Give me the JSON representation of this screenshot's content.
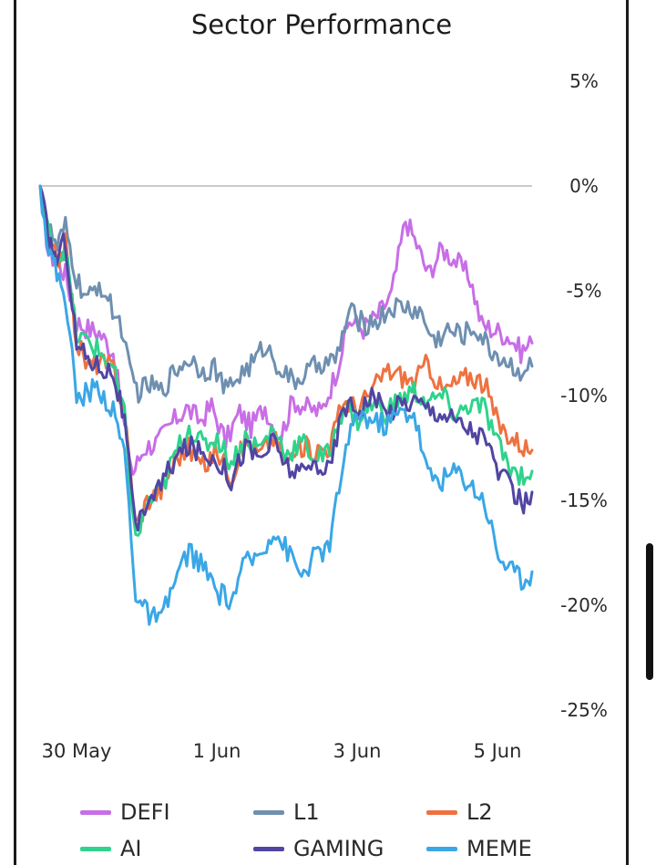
{
  "chart_data": {
    "type": "line",
    "title": "Sector Performance",
    "xlabel": "",
    "ylabel": "",
    "x_ticks": [
      "30 May",
      "1 Jun",
      "3 Jun",
      "5 Jun"
    ],
    "x_range": [
      "30 May",
      "5 Jun"
    ],
    "y_ticks": [
      "5%",
      "0%",
      "-5%",
      "-10%",
      "-15%",
      "-20%",
      "-25%"
    ],
    "y_tick_values": [
      5,
      0,
      -5,
      -10,
      -15,
      -20,
      -25
    ],
    "ylim": [
      -25,
      5
    ],
    "y_axis_side": "right",
    "reference_line": 0,
    "grid": false,
    "legend_position": "bottom",
    "series": [
      {
        "name": "DEFI",
        "color": "#c86ee6",
        "keypoints": [
          [
            0,
            0
          ],
          [
            0.6,
            -3.2
          ],
          [
            1.2,
            -3.6
          ],
          [
            1.8,
            -4.2
          ],
          [
            2.6,
            -6.5
          ],
          [
            3.4,
            -6.8
          ],
          [
            4.2,
            -7.0
          ],
          [
            5.2,
            -7.9
          ],
          [
            6.0,
            -11.5
          ],
          [
            6.6,
            -13.7
          ],
          [
            7.4,
            -12.5
          ],
          [
            8.4,
            -12.2
          ],
          [
            9.4,
            -11.3
          ],
          [
            10.4,
            -10.6
          ],
          [
            11.4,
            -11.2
          ],
          [
            12.2,
            -10.5
          ],
          [
            13.2,
            -12.2
          ],
          [
            14.2,
            -10.8
          ],
          [
            15.0,
            -11.5
          ],
          [
            16.0,
            -10.5
          ],
          [
            17.0,
            -12.2
          ],
          [
            18.0,
            -10.2
          ],
          [
            19.0,
            -10.6
          ],
          [
            20.0,
            -10.8
          ],
          [
            21.0,
            -9.0
          ],
          [
            22.0,
            -6.4
          ],
          [
            23.0,
            -6.8
          ],
          [
            24.0,
            -6.2
          ],
          [
            25.0,
            -5.2
          ],
          [
            26.0,
            -1.6
          ],
          [
            26.8,
            -2.8
          ],
          [
            27.6,
            -4.2
          ],
          [
            28.6,
            -3.0
          ],
          [
            29.6,
            -3.6
          ],
          [
            30.6,
            -4.4
          ],
          [
            31.4,
            -6.6
          ],
          [
            32.4,
            -6.9
          ],
          [
            33.4,
            -7.2
          ],
          [
            34.2,
            -7.9
          ],
          [
            35.0,
            -7.5
          ]
        ]
      },
      {
        "name": "L1",
        "color": "#6e8fb0",
        "keypoints": [
          [
            0,
            0
          ],
          [
            0.6,
            -2.0
          ],
          [
            1.2,
            -3.0
          ],
          [
            1.8,
            -2.0
          ],
          [
            2.6,
            -4.5
          ],
          [
            3.4,
            -5.5
          ],
          [
            4.2,
            -4.6
          ],
          [
            5.0,
            -5.7
          ],
          [
            5.8,
            -6.7
          ],
          [
            6.4,
            -9.0
          ],
          [
            7.0,
            -9.8
          ],
          [
            7.8,
            -9.5
          ],
          [
            8.6,
            -9.8
          ],
          [
            9.6,
            -8.8
          ],
          [
            10.6,
            -8.2
          ],
          [
            11.6,
            -8.8
          ],
          [
            12.4,
            -8.6
          ],
          [
            13.2,
            -9.8
          ],
          [
            14.2,
            -9.0
          ],
          [
            15.2,
            -8.4
          ],
          [
            16.0,
            -7.6
          ],
          [
            17.0,
            -8.6
          ],
          [
            18.0,
            -9.4
          ],
          [
            19.0,
            -8.9
          ],
          [
            20.0,
            -8.4
          ],
          [
            21.0,
            -8.4
          ],
          [
            22.0,
            -6.0
          ],
          [
            23.0,
            -6.6
          ],
          [
            24.0,
            -6.4
          ],
          [
            25.0,
            -5.8
          ],
          [
            26.0,
            -5.8
          ],
          [
            27.0,
            -6.0
          ],
          [
            28.0,
            -7.4
          ],
          [
            29.0,
            -6.9
          ],
          [
            30.0,
            -7.1
          ],
          [
            31.0,
            -6.8
          ],
          [
            32.0,
            -7.8
          ],
          [
            33.0,
            -8.3
          ],
          [
            34.0,
            -8.8
          ],
          [
            35.0,
            -8.6
          ]
        ]
      },
      {
        "name": "L2",
        "color": "#ee7240",
        "keypoints": [
          [
            0,
            0
          ],
          [
            0.6,
            -2.6
          ],
          [
            1.2,
            -3.6
          ],
          [
            1.8,
            -2.8
          ],
          [
            2.6,
            -7.4
          ],
          [
            3.4,
            -8.6
          ],
          [
            4.2,
            -8.4
          ],
          [
            5.2,
            -8.7
          ],
          [
            6.0,
            -10.8
          ],
          [
            6.8,
            -16.2
          ],
          [
            7.6,
            -15.0
          ],
          [
            8.6,
            -14.5
          ],
          [
            9.6,
            -13.0
          ],
          [
            10.6,
            -12.5
          ],
          [
            11.6,
            -13.4
          ],
          [
            12.6,
            -12.6
          ],
          [
            13.6,
            -13.8
          ],
          [
            14.6,
            -12.2
          ],
          [
            15.6,
            -12.8
          ],
          [
            16.6,
            -12.0
          ],
          [
            17.6,
            -13.2
          ],
          [
            18.6,
            -12.4
          ],
          [
            19.6,
            -12.6
          ],
          [
            20.6,
            -12.4
          ],
          [
            21.6,
            -10.2
          ],
          [
            22.6,
            -10.6
          ],
          [
            23.6,
            -9.8
          ],
          [
            24.6,
            -8.8
          ],
          [
            25.6,
            -9.0
          ],
          [
            26.6,
            -9.4
          ],
          [
            27.6,
            -8.4
          ],
          [
            28.6,
            -9.8
          ],
          [
            29.6,
            -9.4
          ],
          [
            30.6,
            -9.0
          ],
          [
            31.6,
            -9.4
          ],
          [
            32.6,
            -11.4
          ],
          [
            33.6,
            -12.0
          ],
          [
            34.4,
            -12.4
          ],
          [
            35.0,
            -12.6
          ]
        ]
      },
      {
        "name": "AI",
        "color": "#2ed38c",
        "keypoints": [
          [
            0,
            0
          ],
          [
            0.6,
            -2.3
          ],
          [
            1.2,
            -3.4
          ],
          [
            1.8,
            -3.0
          ],
          [
            2.6,
            -7.2
          ],
          [
            3.4,
            -7.4
          ],
          [
            4.2,
            -7.9
          ],
          [
            5.2,
            -8.7
          ],
          [
            6.0,
            -11.0
          ],
          [
            6.8,
            -17.0
          ],
          [
            7.6,
            -15.2
          ],
          [
            8.6,
            -14.6
          ],
          [
            9.6,
            -12.8
          ],
          [
            10.6,
            -11.5
          ],
          [
            11.6,
            -12.4
          ],
          [
            12.6,
            -12.0
          ],
          [
            13.6,
            -13.2
          ],
          [
            14.6,
            -12.0
          ],
          [
            15.6,
            -12.5
          ],
          [
            16.6,
            -11.6
          ],
          [
            17.6,
            -12.8
          ],
          [
            18.6,
            -12.2
          ],
          [
            19.6,
            -13.0
          ],
          [
            20.6,
            -12.8
          ],
          [
            21.6,
            -10.4
          ],
          [
            22.6,
            -11.2
          ],
          [
            23.6,
            -10.4
          ],
          [
            24.6,
            -10.8
          ],
          [
            25.6,
            -10.2
          ],
          [
            26.6,
            -9.8
          ],
          [
            27.6,
            -10.4
          ],
          [
            28.6,
            -10.0
          ],
          [
            29.6,
            -11.0
          ],
          [
            30.6,
            -10.4
          ],
          [
            31.6,
            -10.6
          ],
          [
            32.6,
            -12.4
          ],
          [
            33.6,
            -13.6
          ],
          [
            34.4,
            -13.8
          ],
          [
            35.0,
            -13.6
          ]
        ]
      },
      {
        "name": "GAMING",
        "color": "#5145a3",
        "keypoints": [
          [
            0,
            0
          ],
          [
            0.6,
            -2.5
          ],
          [
            1.2,
            -3.5
          ],
          [
            1.8,
            -2.5
          ],
          [
            2.6,
            -7.6
          ],
          [
            3.4,
            -8.2
          ],
          [
            4.2,
            -8.6
          ],
          [
            5.2,
            -8.9
          ],
          [
            6.0,
            -11.2
          ],
          [
            6.8,
            -16.6
          ],
          [
            7.6,
            -15.0
          ],
          [
            8.6,
            -14.3
          ],
          [
            9.6,
            -13.0
          ],
          [
            10.6,
            -12.4
          ],
          [
            11.6,
            -12.8
          ],
          [
            12.6,
            -13.0
          ],
          [
            13.6,
            -14.0
          ],
          [
            14.6,
            -12.4
          ],
          [
            15.6,
            -13.0
          ],
          [
            16.6,
            -12.2
          ],
          [
            17.6,
            -13.4
          ],
          [
            18.6,
            -13.8
          ],
          [
            19.6,
            -13.2
          ],
          [
            20.6,
            -13.6
          ],
          [
            21.6,
            -10.4
          ],
          [
            22.6,
            -10.6
          ],
          [
            23.6,
            -10.0
          ],
          [
            24.6,
            -10.8
          ],
          [
            25.6,
            -10.4
          ],
          [
            26.6,
            -10.2
          ],
          [
            27.6,
            -10.6
          ],
          [
            28.6,
            -10.8
          ],
          [
            29.6,
            -11.2
          ],
          [
            30.6,
            -11.6
          ],
          [
            31.6,
            -12.0
          ],
          [
            32.6,
            -13.6
          ],
          [
            33.6,
            -14.6
          ],
          [
            34.4,
            -15.2
          ],
          [
            35.0,
            -14.6
          ]
        ]
      },
      {
        "name": "MEME",
        "color": "#3aa7e6",
        "keypoints": [
          [
            0,
            0
          ],
          [
            0.6,
            -3.0
          ],
          [
            1.2,
            -4.2
          ],
          [
            1.8,
            -5.2
          ],
          [
            2.6,
            -10.2
          ],
          [
            3.4,
            -9.8
          ],
          [
            4.2,
            -9.6
          ],
          [
            5.2,
            -10.8
          ],
          [
            6.0,
            -12.6
          ],
          [
            6.8,
            -19.4
          ],
          [
            7.6,
            -20.4
          ],
          [
            8.6,
            -20.8
          ],
          [
            9.6,
            -18.8
          ],
          [
            10.6,
            -17.4
          ],
          [
            11.6,
            -18.2
          ],
          [
            12.6,
            -19.4
          ],
          [
            13.6,
            -19.8
          ],
          [
            14.6,
            -18.0
          ],
          [
            15.6,
            -17.6
          ],
          [
            16.6,
            -16.4
          ],
          [
            17.6,
            -17.4
          ],
          [
            18.6,
            -18.6
          ],
          [
            19.6,
            -17.6
          ],
          [
            20.6,
            -17.2
          ],
          [
            21.6,
            -13.0
          ],
          [
            22.6,
            -10.8
          ],
          [
            23.6,
            -11.2
          ],
          [
            24.6,
            -11.4
          ],
          [
            25.6,
            -10.8
          ],
          [
            26.6,
            -10.8
          ],
          [
            27.6,
            -13.8
          ],
          [
            28.6,
            -14.0
          ],
          [
            29.6,
            -13.6
          ],
          [
            30.6,
            -14.2
          ],
          [
            31.6,
            -15.0
          ],
          [
            32.6,
            -17.6
          ],
          [
            33.6,
            -18.4
          ],
          [
            34.4,
            -18.8
          ],
          [
            35.0,
            -18.4
          ]
        ]
      }
    ]
  }
}
